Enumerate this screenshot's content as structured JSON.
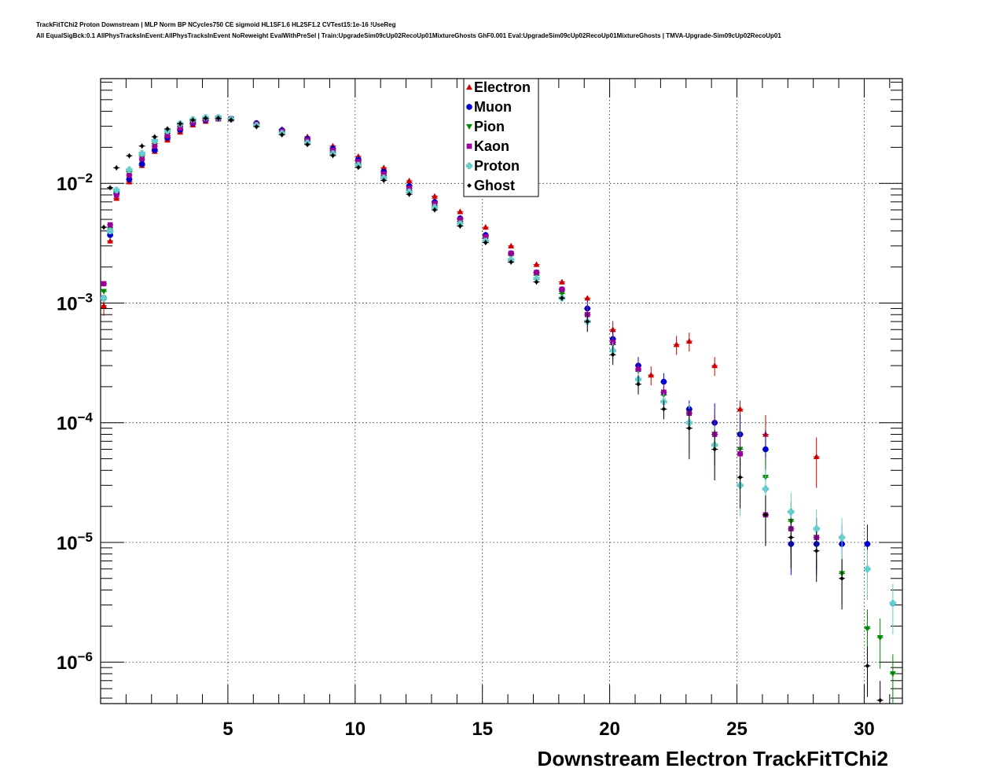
{
  "header": {
    "title_line1": "TrackFitTChi2 Proton Downstream | MLP Norm BP NCycles750 CE sigmoid HL1SF1.6 HL2SF1.2 CVTest15:1e-16 !UseReg",
    "title_line2": "All EqualSigBck:0.1 AllPhysTracksInEvent:AllPhysTracksInEvent NoReweight EvalWithPreSel | Train:UpgradeSim09cUp02RecoUp01MixtureGhosts GhF0.001 Eval:UpgradeSim09cUp02RecoUp01MixtureGhosts | TMVA-Upgrade-Sim09cUp02RecoUp01"
  },
  "chart_data": {
    "type": "scatter",
    "xlabel": "Downstream Electron TrackFitTChi2",
    "ylabel": "",
    "xlim": [
      0,
      31.5
    ],
    "ylim": [
      4.5e-07,
      0.075
    ],
    "yscale": "log",
    "grid": true,
    "legend_position": "top-center",
    "x_ticks": [
      5,
      10,
      15,
      20,
      25,
      30
    ],
    "y_ticks": [
      {
        "value": 1e-06,
        "base": "10",
        "exp": "−6"
      },
      {
        "value": 1e-05,
        "base": "10",
        "exp": "−5"
      },
      {
        "value": 0.0001,
        "base": "10",
        "exp": "−4"
      },
      {
        "value": 0.001,
        "base": "10",
        "exp": "−3"
      },
      {
        "value": 0.01,
        "base": "10",
        "exp": "−2"
      }
    ],
    "bin_width": 0.25,
    "series": [
      {
        "name": "Electron",
        "color": "#cc0000",
        "marker": "triangle-up",
        "points": [
          [
            0.125,
            0.00095
          ],
          [
            0.375,
            0.0033
          ],
          [
            0.625,
            0.0075
          ],
          [
            1.125,
            0.0103
          ],
          [
            1.625,
            0.0141
          ],
          [
            2.125,
            0.0185
          ],
          [
            2.625,
            0.023
          ],
          [
            3.125,
            0.0268
          ],
          [
            3.625,
            0.0308
          ],
          [
            4.125,
            0.033
          ],
          [
            4.625,
            0.0345
          ],
          [
            5.125,
            0.0345
          ],
          [
            6.125,
            0.032
          ],
          [
            7.125,
            0.0283
          ],
          [
            8.125,
            0.0245
          ],
          [
            9.125,
            0.0205
          ],
          [
            10.125,
            0.0168
          ],
          [
            11.125,
            0.0135
          ],
          [
            12.125,
            0.0105
          ],
          [
            13.125,
            0.0078
          ],
          [
            14.125,
            0.0058
          ],
          [
            15.125,
            0.0043
          ],
          [
            16.125,
            0.003
          ],
          [
            17.125,
            0.0021
          ],
          [
            18.125,
            0.0015
          ],
          [
            19.125,
            0.0011
          ],
          [
            20.125,
            0.0006
          ],
          [
            21.625,
            0.00025
          ],
          [
            22.625,
            0.00045
          ],
          [
            23.125,
            0.00048
          ],
          [
            24.125,
            0.0003
          ],
          [
            25.125,
            0.00013
          ],
          [
            26.125,
            8e-05
          ],
          [
            28.125,
            5.2e-05
          ]
        ]
      },
      {
        "name": "Muon",
        "color": "#0000cc",
        "marker": "circle",
        "points": [
          [
            0.125,
            0.0011
          ],
          [
            0.375,
            0.0037
          ],
          [
            0.625,
            0.0082
          ],
          [
            1.125,
            0.0108
          ],
          [
            1.625,
            0.0145
          ],
          [
            2.125,
            0.019
          ],
          [
            2.625,
            0.024
          ],
          [
            3.125,
            0.028
          ],
          [
            3.625,
            0.0318
          ],
          [
            4.125,
            0.0337
          ],
          [
            4.625,
            0.0348
          ],
          [
            5.125,
            0.0347
          ],
          [
            6.125,
            0.0318
          ],
          [
            7.125,
            0.0278
          ],
          [
            8.125,
            0.0236
          ],
          [
            9.125,
            0.0195
          ],
          [
            10.125,
            0.0158
          ],
          [
            11.125,
            0.0125
          ],
          [
            12.125,
            0.0095
          ],
          [
            13.125,
            0.007
          ],
          [
            14.125,
            0.0051
          ],
          [
            15.125,
            0.0037
          ],
          [
            16.125,
            0.0026
          ],
          [
            17.125,
            0.0018
          ],
          [
            18.125,
            0.0013
          ],
          [
            19.125,
            0.0009
          ],
          [
            20.125,
            0.0005
          ],
          [
            21.125,
            0.0003
          ],
          [
            22.125,
            0.00022
          ],
          [
            23.125,
            0.00013
          ],
          [
            24.125,
            0.0001
          ],
          [
            25.125,
            8e-05
          ],
          [
            26.125,
            6e-05
          ],
          [
            27.125,
            9.7e-06
          ],
          [
            28.125,
            9.7e-06
          ],
          [
            29.125,
            9.7e-06
          ],
          [
            30.125,
            9.7e-06
          ]
        ]
      },
      {
        "name": "Pion",
        "color": "#008800",
        "marker": "triangle-down",
        "points": [
          [
            0.125,
            0.00125
          ],
          [
            0.375,
            0.0041
          ],
          [
            0.625,
            0.0085
          ],
          [
            1.125,
            0.0125
          ],
          [
            1.625,
            0.017
          ],
          [
            2.125,
            0.0215
          ],
          [
            2.625,
            0.0262
          ],
          [
            3.125,
            0.03
          ],
          [
            3.625,
            0.033
          ],
          [
            4.125,
            0.0348
          ],
          [
            4.625,
            0.0352
          ],
          [
            5.125,
            0.0345
          ],
          [
            6.125,
            0.031
          ],
          [
            7.125,
            0.0268
          ],
          [
            8.125,
            0.0225
          ],
          [
            9.125,
            0.0183
          ],
          [
            10.125,
            0.0147
          ],
          [
            11.125,
            0.0116
          ],
          [
            12.125,
            0.0088
          ],
          [
            13.125,
            0.0065
          ],
          [
            14.125,
            0.0048
          ],
          [
            15.125,
            0.0035
          ],
          [
            16.125,
            0.0025
          ],
          [
            17.125,
            0.0017
          ],
          [
            18.125,
            0.0012
          ],
          [
            19.125,
            0.0008
          ],
          [
            20.125,
            0.00045
          ],
          [
            21.125,
            0.00027
          ],
          [
            22.125,
            0.00017
          ],
          [
            23.125,
            0.00012
          ],
          [
            24.125,
            8e-05
          ],
          [
            25.125,
            6e-05
          ],
          [
            26.125,
            3.5e-05
          ],
          [
            27.125,
            1.5e-05
          ],
          [
            28.125,
            1.1e-05
          ],
          [
            29.125,
            5.5e-06
          ],
          [
            30.125,
            1.9e-06
          ],
          [
            30.625,
            1.6e-06
          ],
          [
            31.125,
            8e-07
          ]
        ]
      },
      {
        "name": "Kaon",
        "color": "#990099",
        "marker": "square",
        "points": [
          [
            0.125,
            0.00145
          ],
          [
            0.375,
            0.0045
          ],
          [
            0.625,
            0.008
          ],
          [
            1.125,
            0.0117
          ],
          [
            1.625,
            0.016
          ],
          [
            2.125,
            0.0205
          ],
          [
            2.625,
            0.025
          ],
          [
            3.125,
            0.029
          ],
          [
            3.625,
            0.0322
          ],
          [
            4.125,
            0.0343
          ],
          [
            4.625,
            0.035
          ],
          [
            5.125,
            0.0346
          ],
          [
            6.125,
            0.0313
          ],
          [
            7.125,
            0.0272
          ],
          [
            8.125,
            0.023
          ],
          [
            9.125,
            0.0189
          ],
          [
            10.125,
            0.0152
          ],
          [
            11.125,
            0.012
          ],
          [
            12.125,
            0.0091
          ],
          [
            13.125,
            0.0068
          ],
          [
            14.125,
            0.005
          ],
          [
            15.125,
            0.0036
          ],
          [
            16.125,
            0.0026
          ],
          [
            17.125,
            0.0018
          ],
          [
            18.125,
            0.0013
          ],
          [
            19.125,
            0.0008
          ],
          [
            20.125,
            0.00047
          ],
          [
            21.125,
            0.00028
          ],
          [
            22.125,
            0.00018
          ],
          [
            23.125,
            0.00012
          ],
          [
            24.125,
            8e-05
          ],
          [
            25.125,
            5.5e-05
          ],
          [
            26.125,
            1.7e-05
          ],
          [
            27.125,
            1.3e-05
          ],
          [
            28.125,
            1.1e-05
          ]
        ]
      },
      {
        "name": "Proton",
        "color": "#66cccc",
        "marker": "cross",
        "points": [
          [
            0.125,
            0.0011
          ],
          [
            0.375,
            0.004
          ],
          [
            0.625,
            0.0088
          ],
          [
            1.125,
            0.013
          ],
          [
            1.625,
            0.0178
          ],
          [
            2.125,
            0.0228
          ],
          [
            2.625,
            0.0275
          ],
          [
            3.125,
            0.0315
          ],
          [
            3.625,
            0.0342
          ],
          [
            4.125,
            0.0355
          ],
          [
            4.625,
            0.0355
          ],
          [
            5.125,
            0.0344
          ],
          [
            6.125,
            0.0305
          ],
          [
            7.125,
            0.0262
          ],
          [
            8.125,
            0.0218
          ],
          [
            9.125,
            0.0177
          ],
          [
            10.125,
            0.0142
          ],
          [
            11.125,
            0.0111
          ],
          [
            12.125,
            0.0085
          ],
          [
            13.125,
            0.0063
          ],
          [
            14.125,
            0.0046
          ],
          [
            15.125,
            0.0033
          ],
          [
            16.125,
            0.0023
          ],
          [
            17.125,
            0.0016
          ],
          [
            18.125,
            0.0011
          ],
          [
            19.125,
            0.0007
          ],
          [
            20.125,
            0.0004
          ],
          [
            21.125,
            0.00023
          ],
          [
            22.125,
            0.00015
          ],
          [
            23.125,
            0.0001
          ],
          [
            24.125,
            6.5e-05
          ],
          [
            25.125,
            3e-05
          ],
          [
            26.125,
            2.8e-05
          ],
          [
            27.125,
            1.8e-05
          ],
          [
            28.125,
            1.3e-05
          ],
          [
            29.125,
            1.1e-05
          ],
          [
            30.125,
            6e-06
          ],
          [
            31.125,
            3.1e-06
          ]
        ]
      },
      {
        "name": "Ghost",
        "color": "#000000",
        "marker": "diamond",
        "points": [
          [
            0.125,
            0.0043
          ],
          [
            0.375,
            0.0092
          ],
          [
            0.625,
            0.0135
          ],
          [
            1.125,
            0.017
          ],
          [
            1.625,
            0.0205
          ],
          [
            2.125,
            0.0245
          ],
          [
            2.625,
            0.0285
          ],
          [
            3.125,
            0.0315
          ],
          [
            3.625,
            0.0338
          ],
          [
            4.125,
            0.035
          ],
          [
            4.625,
            0.035
          ],
          [
            5.125,
            0.0338
          ],
          [
            6.125,
            0.0298
          ],
          [
            7.125,
            0.0255
          ],
          [
            8.125,
            0.0211
          ],
          [
            9.125,
            0.0171
          ],
          [
            10.125,
            0.0136
          ],
          [
            11.125,
            0.0106
          ],
          [
            12.125,
            0.0081
          ],
          [
            13.125,
            0.006
          ],
          [
            14.125,
            0.0044
          ],
          [
            15.125,
            0.0032
          ],
          [
            16.125,
            0.0022
          ],
          [
            17.125,
            0.0015
          ],
          [
            18.125,
            0.0011
          ],
          [
            19.125,
            0.0007
          ],
          [
            20.125,
            0.00037
          ],
          [
            21.125,
            0.00021
          ],
          [
            22.125,
            0.00013
          ],
          [
            23.125,
            9e-05
          ],
          [
            24.125,
            6e-05
          ],
          [
            25.125,
            3.5e-05
          ],
          [
            26.125,
            1.7e-05
          ],
          [
            27.125,
            1.1e-05
          ],
          [
            28.125,
            8.5e-06
          ],
          [
            29.125,
            5e-06
          ],
          [
            30.125,
            9.3e-07
          ],
          [
            30.625,
            4.8e-07
          ]
        ]
      }
    ]
  }
}
